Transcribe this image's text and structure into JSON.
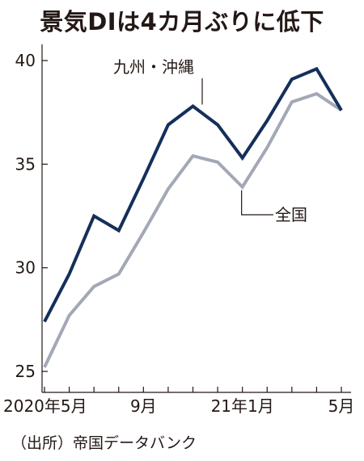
{
  "title": "景気DIは4カ月ぶりに低下",
  "source": "（出所）帝国データバンク",
  "colors": {
    "okinawa": "#152f5b",
    "national": "#a3a8b6",
    "axis": "#231815"
  },
  "chart_data": {
    "type": "line",
    "title": "景気DIは4カ月ぶりに低下",
    "xlabel": "",
    "ylabel": "",
    "x": [
      "2020-05",
      "2020-06",
      "2020-07",
      "2020-08",
      "2020-09",
      "2020-10",
      "2020-11",
      "2020-12",
      "2021-01",
      "2021-02",
      "2021-03",
      "2021-04",
      "2021-05"
    ],
    "x_tick_labels": [
      {
        "index": 0,
        "label": "2020年5月"
      },
      {
        "index": 4,
        "label": "9月"
      },
      {
        "index": 8,
        "label": "21年1月"
      },
      {
        "index": 12,
        "label": "5月"
      }
    ],
    "ylim": [
      25,
      41
    ],
    "yticks": [
      25,
      30,
      35,
      40
    ],
    "grid": false,
    "series": [
      {
        "name": "九州・沖縄",
        "color": "#152f5b",
        "values": [
          27.4,
          29.7,
          32.5,
          31.8,
          34.3,
          36.9,
          37.8,
          36.9,
          35.3,
          37.1,
          39.1,
          39.6,
          37.6
        ]
      },
      {
        "name": "全国",
        "color": "#a3a8b6",
        "values": [
          25.2,
          27.7,
          29.1,
          29.7,
          31.7,
          33.8,
          35.4,
          35.1,
          33.9,
          35.8,
          38.0,
          38.4,
          37.6
        ]
      }
    ]
  }
}
